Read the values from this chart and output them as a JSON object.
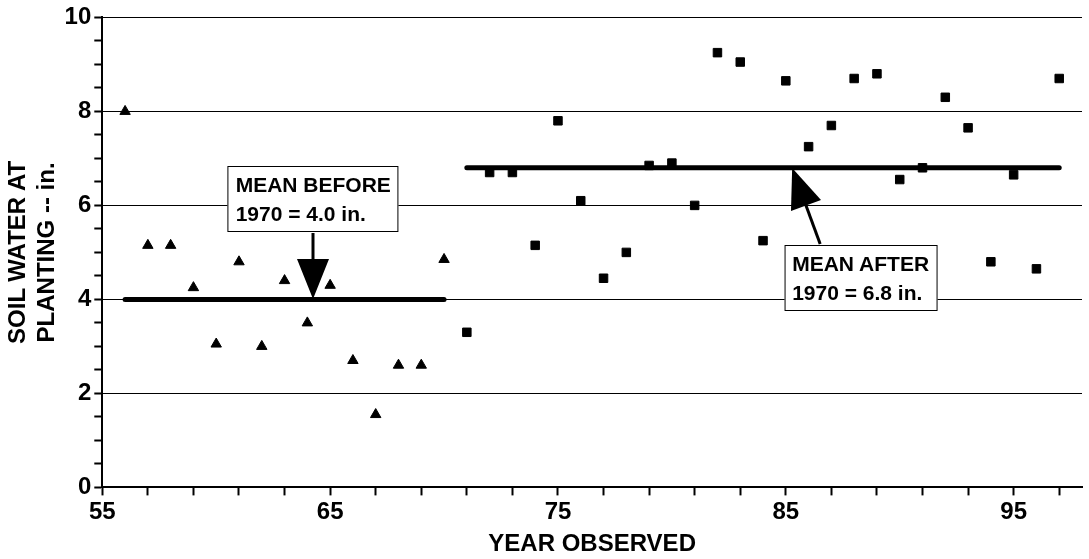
{
  "chart_data": {
    "type": "scatter",
    "xlabel": "YEAR OBSERVED",
    "ylabel": "SOIL WATER AT\nPLANTING -- in.",
    "xlim": [
      55,
      98
    ],
    "ylim": [
      0,
      10
    ],
    "xticks": [
      55,
      {
        "value": 57,
        "label": null
      },
      {
        "value": 59,
        "label": null
      },
      {
        "value": 61,
        "label": null
      },
      {
        "value": 63,
        "label": null
      },
      65,
      {
        "value": 67,
        "label": null
      },
      {
        "value": 69,
        "label": null
      },
      {
        "value": 71,
        "label": null
      },
      {
        "value": 73,
        "label": null
      },
      75,
      {
        "value": 77,
        "label": null
      },
      {
        "value": 79,
        "label": null
      },
      {
        "value": 81,
        "label": null
      },
      {
        "value": 83,
        "label": null
      },
      85,
      {
        "value": 87,
        "label": null
      },
      {
        "value": 89,
        "label": null
      },
      {
        "value": 91,
        "label": null
      },
      {
        "value": 93,
        "label": null
      },
      95,
      {
        "value": 97,
        "label": null
      }
    ],
    "yticks": [
      0,
      {
        "value": 0.5,
        "label": null
      },
      {
        "value": 1,
        "label": null
      },
      {
        "value": 1.5,
        "label": null
      },
      2,
      {
        "value": 2.5,
        "label": null
      },
      {
        "value": 3,
        "label": null
      },
      {
        "value": 3.5,
        "label": null
      },
      4,
      {
        "value": 4.5,
        "label": null
      },
      {
        "value": 5,
        "label": null
      },
      {
        "value": 5.5,
        "label": null
      },
      6,
      {
        "value": 6.5,
        "label": null
      },
      {
        "value": 7,
        "label": null
      },
      {
        "value": 7.5,
        "label": null
      },
      8,
      {
        "value": 8.5,
        "label": null
      },
      {
        "value": 9,
        "label": null
      },
      {
        "value": 9.5,
        "label": null
      },
      10
    ],
    "grid": "y",
    "legend": false,
    "series": [
      {
        "marker": "triangle",
        "color": "#000000",
        "x": [
          56,
          57,
          58,
          59,
          60,
          61,
          62,
          63,
          64,
          65,
          66,
          67,
          68,
          69,
          70
        ],
        "values": [
          8.0,
          5.15,
          5.15,
          4.25,
          3.05,
          4.8,
          3.0,
          4.4,
          3.5,
          4.3,
          2.7,
          1.55,
          2.6,
          2.6,
          4.85
        ]
      },
      {
        "marker": "square",
        "color": "#000000",
        "x": [
          71,
          72,
          73,
          74,
          75,
          76,
          77,
          78,
          79,
          80,
          81,
          82,
          83,
          84,
          85,
          86,
          87,
          88,
          89,
          90,
          91,
          92,
          93,
          94,
          95,
          96,
          97
        ],
        "values": [
          3.3,
          6.7,
          6.7,
          5.15,
          7.8,
          6.1,
          4.45,
          5.0,
          6.85,
          6.9,
          6.0,
          9.25,
          9.05,
          5.25,
          8.65,
          7.25,
          7.7,
          8.7,
          8.8,
          6.55,
          6.8,
          8.3,
          7.65,
          4.8,
          6.65,
          4.65,
          8.7
        ]
      },
      {
        "type": "line",
        "marker": "none",
        "color": "#000000",
        "x": [
          56,
          70
        ],
        "values": [
          4.0,
          4.0
        ]
      },
      {
        "type": "line",
        "marker": "none",
        "color": "#000000",
        "x": [
          71,
          97
        ],
        "values": [
          6.8,
          6.8
        ]
      }
    ],
    "annotations": [
      "MEAN BEFORE\n1970 = 4.0 in.",
      "MEAN AFTER\n1970 = 6.8 in."
    ]
  }
}
